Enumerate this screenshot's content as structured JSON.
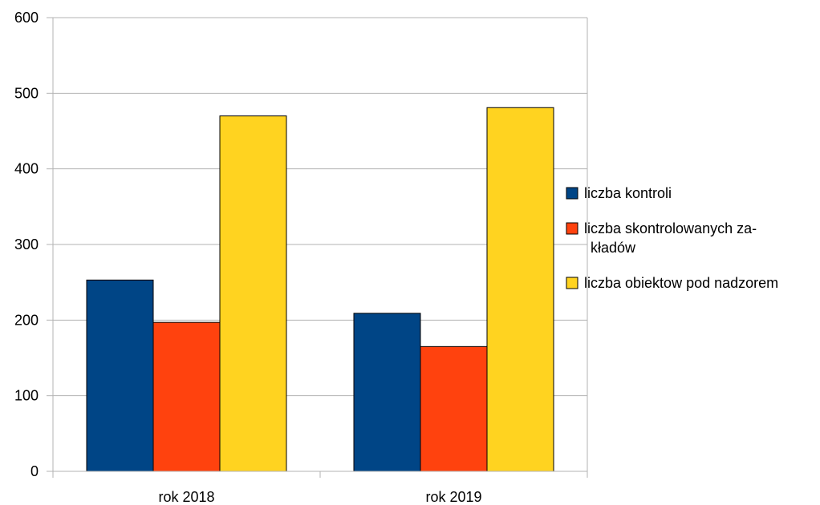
{
  "chart_data": {
    "type": "bar",
    "categories": [
      "rok 2018",
      "rok 2019"
    ],
    "series": [
      {
        "name": "liczba kontroli",
        "values": [
          253,
          209
        ],
        "color": "#004586"
      },
      {
        "name": "liczba skontrolowanych za-\nkładów",
        "values": [
          197,
          165
        ],
        "color": "#ff420e"
      },
      {
        "name": "liczba obiektow pod nadzorem",
        "values": [
          470,
          481
        ],
        "color": "#ffd320"
      }
    ],
    "ylim": [
      0,
      600
    ],
    "yticks": [
      "0",
      "100",
      "200",
      "300",
      "400",
      "500",
      "600"
    ],
    "grid": true,
    "legend": "right"
  }
}
